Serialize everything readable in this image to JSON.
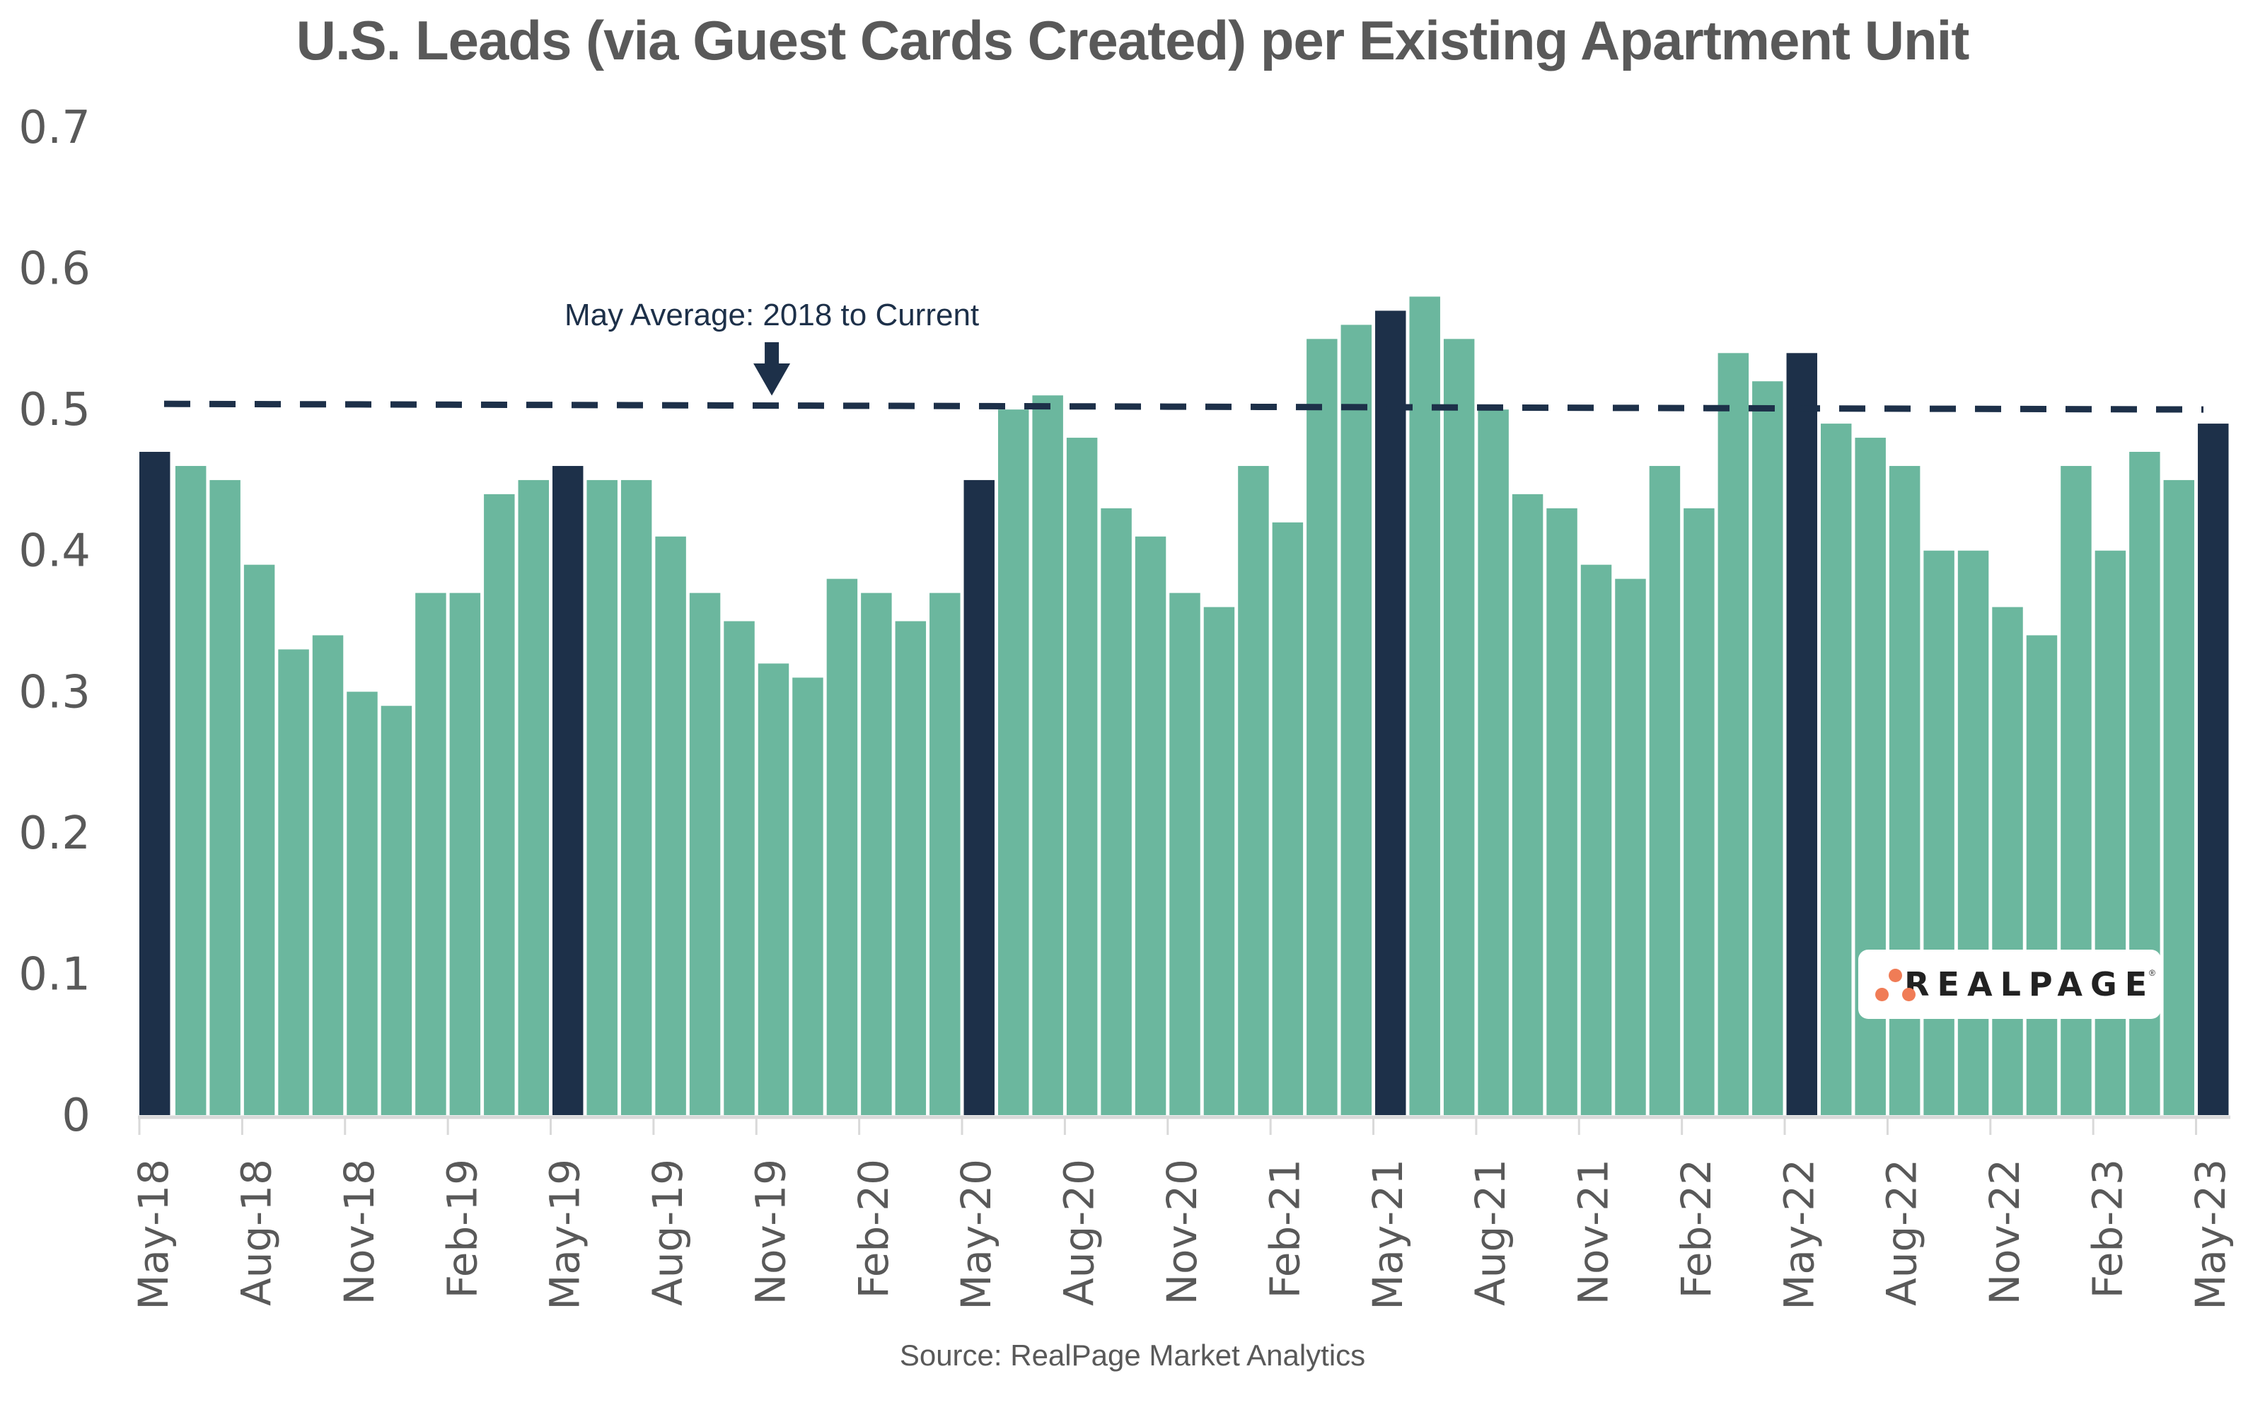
{
  "chart_data": {
    "type": "bar",
    "title": "U.S. Leads (via Guest Cards Created) per Existing Apartment Unit",
    "xlabel": "",
    "ylabel": "",
    "ylim": [
      0,
      0.7
    ],
    "yticks": [
      "0",
      "0.1",
      "0.2",
      "0.3",
      "0.4",
      "0.5",
      "0.6",
      "0.7"
    ],
    "grid": false,
    "categories": [
      "May-18",
      "Jun-18",
      "Jul-18",
      "Aug-18",
      "Sep-18",
      "Oct-18",
      "Nov-18",
      "Dec-18",
      "Jan-19",
      "Feb-19",
      "Mar-19",
      "Apr-19",
      "May-19",
      "Jun-19",
      "Jul-19",
      "Aug-19",
      "Sep-19",
      "Oct-19",
      "Nov-19",
      "Dec-19",
      "Jan-20",
      "Feb-20",
      "Mar-20",
      "Apr-20",
      "May-20",
      "Jun-20",
      "Jul-20",
      "Aug-20",
      "Sep-20",
      "Oct-20",
      "Nov-20",
      "Dec-20",
      "Jan-21",
      "Feb-21",
      "Mar-21",
      "Apr-21",
      "May-21",
      "Jun-21",
      "Jul-21",
      "Aug-21",
      "Sep-21",
      "Oct-21",
      "Nov-21",
      "Dec-21",
      "Jan-22",
      "Feb-22",
      "Mar-22",
      "Apr-22",
      "May-22",
      "Jun-22",
      "Jul-22",
      "Aug-22",
      "Sep-22",
      "Oct-22",
      "Nov-22",
      "Dec-22",
      "Jan-23",
      "Feb-23",
      "Mar-23",
      "Apr-23",
      "May-23"
    ],
    "values": [
      0.47,
      0.46,
      0.45,
      0.39,
      0.33,
      0.34,
      0.3,
      0.29,
      0.37,
      0.37,
      0.44,
      0.45,
      0.46,
      0.45,
      0.45,
      0.41,
      0.37,
      0.35,
      0.32,
      0.31,
      0.38,
      0.37,
      0.35,
      0.37,
      0.45,
      0.5,
      0.51,
      0.48,
      0.43,
      0.41,
      0.37,
      0.36,
      0.46,
      0.42,
      0.55,
      0.56,
      0.57,
      0.58,
      0.55,
      0.5,
      0.44,
      0.43,
      0.39,
      0.38,
      0.46,
      0.43,
      0.54,
      0.52,
      0.54,
      0.49,
      0.48,
      0.46,
      0.4,
      0.4,
      0.36,
      0.34,
      0.46,
      0.4,
      0.47,
      0.45,
      0.49
    ],
    "highlighted": [
      "May-18",
      "May-19",
      "May-20",
      "May-21",
      "May-22",
      "May-23"
    ],
    "visible_xtick_labels": [
      "May-18",
      "Aug-18",
      "Nov-18",
      "Feb-19",
      "May-19",
      "Aug-19",
      "Nov-19",
      "Feb-20",
      "May-20",
      "Aug-20",
      "Nov-20",
      "Feb-21",
      "May-21",
      "Aug-21",
      "Nov-21",
      "Feb-22",
      "May-22",
      "Aug-22",
      "Nov-22",
      "Feb-23",
      "May-23"
    ],
    "reference_line": {
      "label": "May Average: 2018 to Current",
      "style": "dashed",
      "value_start": 0.504,
      "value_end": 0.5
    },
    "colors": {
      "bar": "#6bb79e",
      "highlight_bar": "#1d3049",
      "reference_line": "#1d3049",
      "axis": "#d9d9d9",
      "text": "#595959"
    },
    "legend": "none"
  },
  "annotation": {
    "text": "May Average: 2018 to Current",
    "icon": "arrow-down-icon",
    "anchor_category": "Nov-19"
  },
  "source": "Source: RealPage Market Analytics",
  "logo": {
    "text": "REALPAGE",
    "registered": "®",
    "dot_color": "#f07c56"
  }
}
